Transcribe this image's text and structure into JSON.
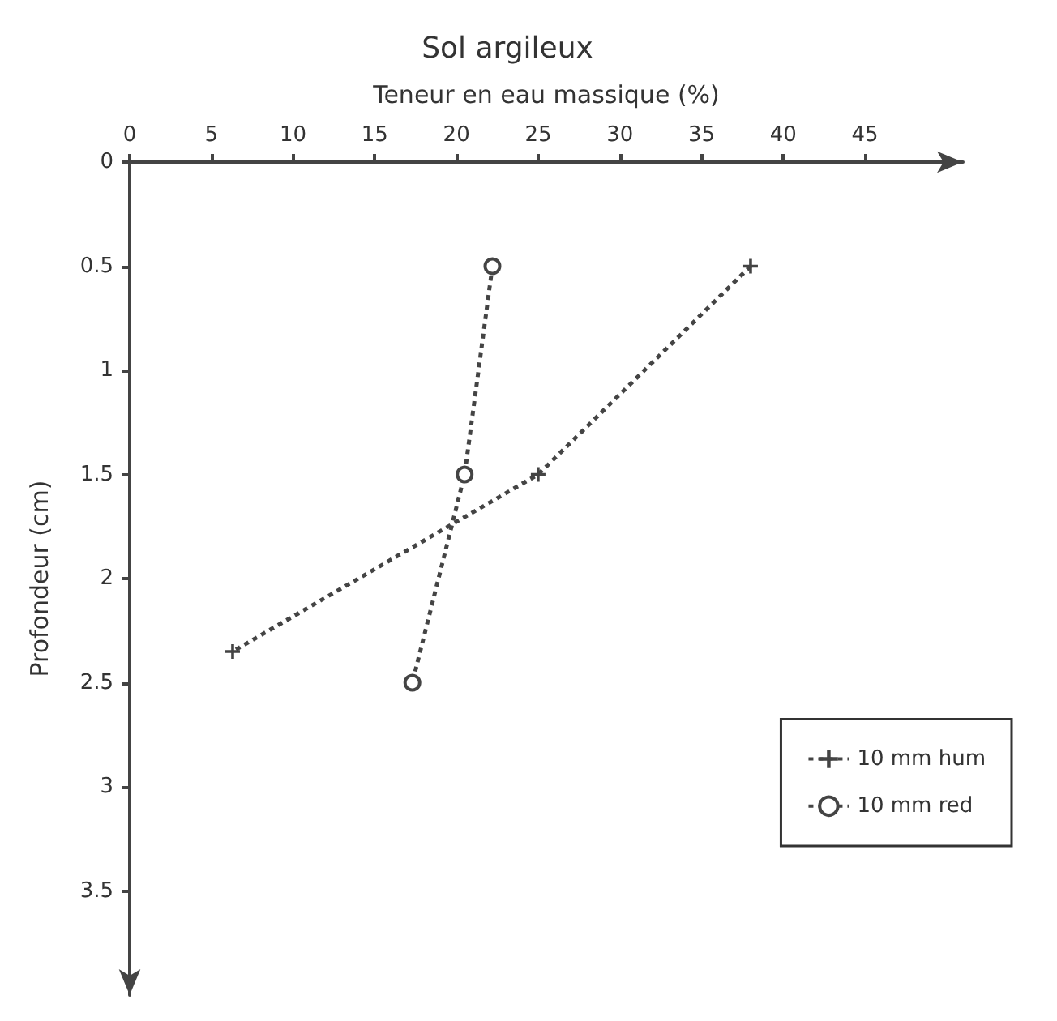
{
  "chart_data": {
    "type": "line",
    "title": "Sol argileux",
    "xlabel": "Teneur en eau massique (%)",
    "ylabel": "Profondeur (cm)",
    "xlim": [
      0,
      51
    ],
    "xticks": [
      0,
      5,
      10,
      15,
      20,
      25,
      30,
      35,
      40,
      45
    ],
    "ylim": [
      4,
      0
    ],
    "yticks": [
      0,
      0.5,
      1,
      1.5,
      2,
      2.5,
      3,
      3.5
    ],
    "grid": false,
    "legend": "bottom right",
    "line_style": "dotted",
    "series": [
      {
        "name": "10 mm hum",
        "color": "#444444",
        "marker": "cross",
        "x": [
          38,
          25,
          6.3
        ],
        "values": [
          0.5,
          1.5,
          2.35
        ]
      },
      {
        "name": "10 mm red",
        "color": "#444444",
        "marker": "circle",
        "x": [
          22.2,
          20.5,
          17.3
        ],
        "values": [
          0.5,
          1.5,
          2.5
        ]
      }
    ]
  }
}
